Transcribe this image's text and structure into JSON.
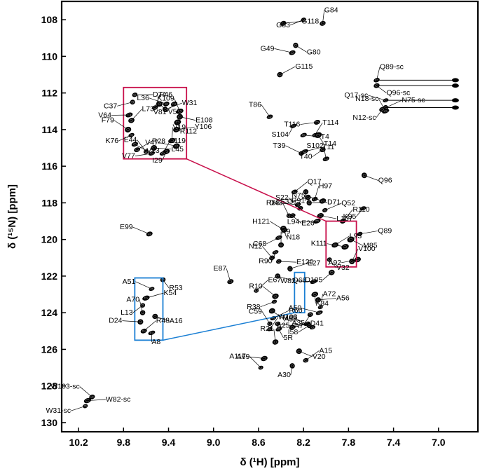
{
  "chart_data": {
    "type": "scatter",
    "title": "",
    "xlabel": "δ (¹H) [ppm]",
    "ylabel": "δ (¹⁵N) [ppm]",
    "xlim": [
      10.35,
      6.65
    ],
    "ylim": [
      107,
      130.5
    ],
    "x_reversed": true,
    "y_reversed": true,
    "grid": false,
    "xticks": [
      10.2,
      9.8,
      9.4,
      9.0,
      8.6,
      8.2,
      7.8,
      7.4,
      7.0
    ],
    "xtick_labels": [
      "10.2",
      "9.8",
      "9.4",
      "9.0",
      "8.6",
      "8.2",
      "7.8",
      "7.4",
      "7.0"
    ],
    "yticks": [
      108,
      110,
      112,
      114,
      116,
      118,
      120,
      122,
      124,
      126,
      128,
      130
    ],
    "ytick_labels": [
      "108",
      "110",
      "112",
      "114",
      "116",
      "118",
      "120",
      "122",
      "124",
      "126",
      "128",
      "130"
    ],
    "colors": {
      "zoom_box_1": "#c8104b",
      "zoom_box_2": "#1a7fd4",
      "peaks": "#000000"
    },
    "peaks": [
      {
        "label": "G118",
        "x": 8.38,
        "y": 108.2
      },
      {
        "label": "G83",
        "x": 8.2,
        "y": 108.0
      },
      {
        "label": "G84",
        "x": 8.03,
        "y": 108.2
      },
      {
        "label": "G80",
        "x": 8.27,
        "y": 109.4
      },
      {
        "label": "G49",
        "x": 8.3,
        "y": 109.8
      },
      {
        "label": "G115",
        "x": 8.41,
        "y": 111.0
      },
      {
        "label": "S104",
        "x": 8.29,
        "y": 113.8
      },
      {
        "label": "T86",
        "x": 8.5,
        "y": 113.3
      },
      {
        "label": "T4",
        "x": 8.2,
        "y": 114.3
      },
      {
        "label": "T116",
        "x": 8.08,
        "y": 113.6
      },
      {
        "label": "T114",
        "x": 8.1,
        "y": 114.3
      },
      {
        "label": "T14",
        "x": 8.07,
        "y": 114.3
      },
      {
        "label": "T39",
        "x": 8.22,
        "y": 115.3
      },
      {
        "label": "T11",
        "x": 8.19,
        "y": 115.2
      },
      {
        "label": "T40",
        "x": 8.03,
        "y": 115.1
      },
      {
        "label": "S102",
        "x": 8.0,
        "y": 115.6
      },
      {
        "label": "Q96",
        "x": 7.66,
        "y": 116.5
      },
      {
        "label": "R88",
        "x": 8.25,
        "y": 118.1
      },
      {
        "label": "Q17",
        "x": 8.28,
        "y": 117.4
      },
      {
        "label": "R91",
        "x": 8.18,
        "y": 117.4
      },
      {
        "label": "S22",
        "x": 8.23,
        "y": 118.3
      },
      {
        "label": "D71",
        "x": 8.15,
        "y": 118.0
      },
      {
        "label": "S33",
        "x": 8.16,
        "y": 117.7
      },
      {
        "label": "H97",
        "x": 8.1,
        "y": 117.8
      },
      {
        "label": "E26",
        "x": 8.3,
        "y": 118.7
      },
      {
        "label": "N75",
        "x": 8.03,
        "y": 117.9
      },
      {
        "label": "Q52",
        "x": 8.01,
        "y": 118.4
      },
      {
        "label": "K95",
        "x": 7.67,
        "y": 118.3
      },
      {
        "label": "D43",
        "x": 8.33,
        "y": 118.7
      },
      {
        "label": "L107",
        "x": 8.05,
        "y": 118.7
      },
      {
        "label": "L94",
        "x": 8.08,
        "y": 119.0
      },
      {
        "label": "R110",
        "x": 7.85,
        "y": 119.0
      },
      {
        "label": "N18",
        "x": 8.38,
        "y": 119.4
      },
      {
        "label": "H121",
        "x": 8.37,
        "y": 119.5
      },
      {
        "label": "Q89",
        "x": 7.7,
        "y": 119.7
      },
      {
        "label": "C68",
        "x": 8.42,
        "y": 119.9
      },
      {
        "label": "R9",
        "x": 8.4,
        "y": 120.3
      },
      {
        "label": "M85",
        "x": 7.78,
        "y": 120.0
      },
      {
        "label": "K111",
        "x": 7.83,
        "y": 120.4
      },
      {
        "label": "L93",
        "x": 7.92,
        "y": 120.3
      },
      {
        "label": "R90",
        "x": 8.45,
        "y": 120.7
      },
      {
        "label": "N12",
        "x": 8.48,
        "y": 121.0
      },
      {
        "label": "E120",
        "x": 8.42,
        "y": 121.2
      },
      {
        "label": "A92",
        "x": 7.72,
        "y": 121.1
      },
      {
        "label": "V100",
        "x": 7.77,
        "y": 121.2
      },
      {
        "label": "V32",
        "x": 7.97,
        "y": 121.1
      },
      {
        "label": "E99",
        "x": 9.57,
        "y": 119.7
      },
      {
        "label": "E27",
        "x": 8.32,
        "y": 121.6
      },
      {
        "label": "D105",
        "x": 7.95,
        "y": 121.8
      },
      {
        "label": "E87",
        "x": 8.85,
        "y": 122.3
      },
      {
        "label": "Q66",
        "x": 8.43,
        "y": 122.0
      },
      {
        "label": "W82",
        "x": 8.11,
        "y": 122.3
      },
      {
        "label": "E67",
        "x": 8.62,
        "y": 122.8
      },
      {
        "label": "K34",
        "x": 8.1,
        "y": 123.0
      },
      {
        "label": "R10",
        "x": 8.45,
        "y": 123.1
      },
      {
        "label": "A56",
        "x": 8.07,
        "y": 123.3
      },
      {
        "label": "R38",
        "x": 8.46,
        "y": 123.4
      },
      {
        "label": "A72",
        "x": 8.05,
        "y": 123.7
      },
      {
        "label": "M65",
        "x": 8.48,
        "y": 123.9
      },
      {
        "label": "A50",
        "x": 8.06,
        "y": 124.0
      },
      {
        "label": "R60",
        "x": 8.47,
        "y": 124.3
      },
      {
        "label": "A35",
        "x": 8.14,
        "y": 124.1
      },
      {
        "label": "C59",
        "x": 8.5,
        "y": 124.6
      },
      {
        "label": "A7",
        "x": 8.43,
        "y": 124.6
      },
      {
        "label": "A25",
        "x": 8.17,
        "y": 124.6
      },
      {
        "label": "W103",
        "x": 8.5,
        "y": 124.9
      },
      {
        "label": "5R",
        "x": 8.42,
        "y": 124.9
      },
      {
        "label": "A55",
        "x": 8.12,
        "y": 124.8
      },
      {
        "label": "D41",
        "x": 8.3,
        "y": 124.8
      },
      {
        "label": "I58",
        "x": 8.15,
        "y": 124.7
      },
      {
        "label": "R21",
        "x": 8.45,
        "y": 125.6
      },
      {
        "label": "V20",
        "x": 8.24,
        "y": 126.1
      },
      {
        "label": "A117",
        "x": 8.55,
        "y": 126.5
      },
      {
        "label": "A15",
        "x": 8.18,
        "y": 126.6
      },
      {
        "label": "A30",
        "x": 8.3,
        "y": 126.9
      },
      {
        "label": "A69",
        "x": 8.58,
        "y": 127.0
      },
      {
        "label": "D74",
        "x": 9.7,
        "y": 112.1
      },
      {
        "label": "C37",
        "x": 9.72,
        "y": 112.5
      },
      {
        "label": "F46",
        "x": 9.52,
        "y": 112.8
      },
      {
        "label": "V57",
        "x": 9.48,
        "y": 112.6
      },
      {
        "label": "L36",
        "x": 9.42,
        "y": 112.6
      },
      {
        "label": "W31",
        "x": 9.43,
        "y": 112.9
      },
      {
        "label": "V81",
        "x": 9.35,
        "y": 112.6
      },
      {
        "label": "K109",
        "x": 9.3,
        "y": 113.0
      },
      {
        "label": "E108",
        "x": 9.3,
        "y": 113.3
      },
      {
        "label": "V64",
        "x": 9.75,
        "y": 113.2
      },
      {
        "label": "L73",
        "x": 9.73,
        "y": 113.5
      },
      {
        "label": "R112",
        "x": 9.32,
        "y": 113.6
      },
      {
        "label": "F79",
        "x": 9.76,
        "y": 114.0
      },
      {
        "label": "Y106",
        "x": 9.33,
        "y": 114.0
      },
      {
        "label": "K76",
        "x": 9.73,
        "y": 114.3
      },
      {
        "label": "V19",
        "x": 9.37,
        "y": 114.6
      },
      {
        "label": "V23",
        "x": 9.7,
        "y": 114.8
      },
      {
        "label": "V47",
        "x": 9.33,
        "y": 114.9
      },
      {
        "label": "R28",
        "x": 9.68,
        "y": 115.1
      },
      {
        "label": "I29",
        "x": 9.42,
        "y": 115.2
      },
      {
        "label": "E44",
        "x": 9.6,
        "y": 115.2
      },
      {
        "label": "L45",
        "x": 9.53,
        "y": 115.0
      },
      {
        "label": "V77",
        "x": 9.55,
        "y": 115.3
      },
      {
        "label": "L119",
        "x": 9.45,
        "y": 115.3
      },
      {
        "label": "R53",
        "x": 9.45,
        "y": 122.2
      },
      {
        "label": "A51",
        "x": 9.55,
        "y": 122.7
      },
      {
        "label": "K54",
        "x": 9.6,
        "y": 123.2
      },
      {
        "label": "L13",
        "x": 9.63,
        "y": 123.6
      },
      {
        "label": "A70",
        "x": 9.63,
        "y": 124.0
      },
      {
        "label": "A16",
        "x": 9.52,
        "y": 124.2
      },
      {
        "label": "D24",
        "x": 9.65,
        "y": 124.5
      },
      {
        "label": "R48",
        "x": 9.62,
        "y": 125.0
      },
      {
        "label": "A8",
        "x": 9.55,
        "y": 125.1
      },
      {
        "label": "W103-sc",
        "x": 10.08,
        "y": 128.6
      },
      {
        "label": "W82-sc",
        "x": 10.12,
        "y": 128.8
      },
      {
        "label": "W31-sc",
        "x": 10.14,
        "y": 129.1
      },
      {
        "label": "Q89-sc",
        "x": 7.55,
        "y": 111.3
      },
      {
        "label": "Q96-sc",
        "x": 7.55,
        "y": 111.6
      },
      {
        "label": "Q17-sc",
        "x": 7.47,
        "y": 112.4
      },
      {
        "label": "N75-sc",
        "x": 7.47,
        "y": 112.8
      },
      {
        "label": "N12-sc",
        "x": 7.5,
        "y": 112.9
      },
      {
        "label": "N18-sc",
        "x": 7.47,
        "y": 113.0
      }
    ]
  }
}
